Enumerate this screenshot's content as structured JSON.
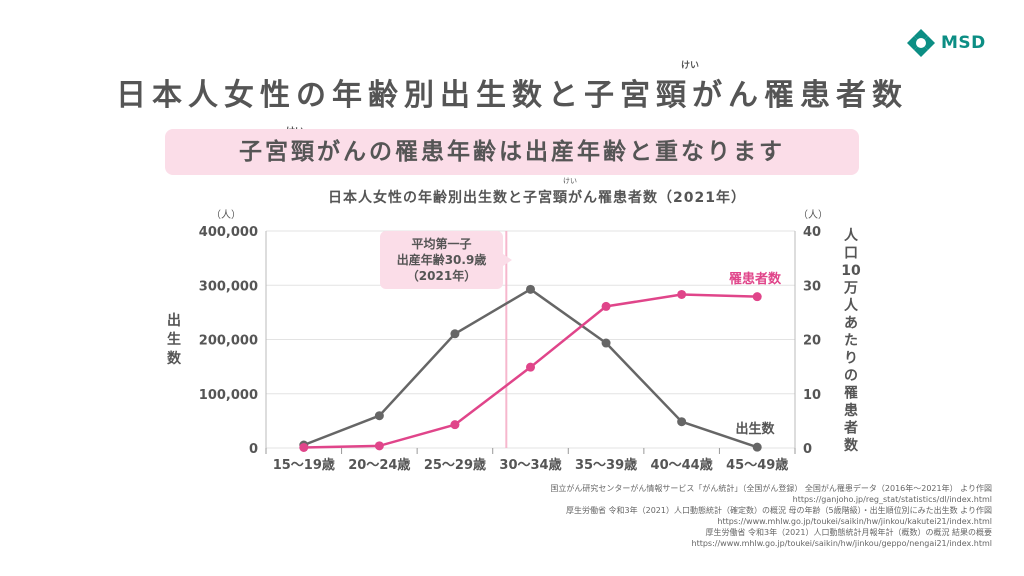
{
  "brand": {
    "name": "MSD",
    "mark": "msd-logo-mark",
    "color": "#0c8e84"
  },
  "page": {
    "title": "日本人女性の年齢別出生数と子宮頸がん罹患者数",
    "title_ruby": "けい",
    "banner": "子宮頸がんの罹患年齢は出産年齢と重なります",
    "banner_ruby": "けい",
    "banner_color": "#fbdde8"
  },
  "chart_data": {
    "type": "line",
    "title": "日本人女性の年齢別出生数と子宮頸がん罹患者数（2021年）",
    "title_ruby": "けい",
    "categories": [
      "15〜19歳",
      "20〜24歳",
      "25〜29歳",
      "30〜34歳",
      "35〜39歳",
      "40〜44歳",
      "45〜49歳"
    ],
    "y_left": {
      "label": "出生数",
      "unit": "（人）",
      "ticks": [
        "400,000",
        "300,000",
        "200,000",
        "100,000",
        "0"
      ],
      "ylim": [
        0,
        400000
      ]
    },
    "y_right": {
      "label": "人口10万人あたりの罹患者数",
      "unit": "（人）",
      "ticks": [
        "40",
        "30",
        "20",
        "10",
        "0"
      ],
      "ylim": [
        0,
        40
      ]
    },
    "series": [
      {
        "name": "出生数",
        "axis": "left",
        "color": "#666666",
        "values": [
          5500,
          59500,
          210500,
          292500,
          193500,
          48500,
          1500
        ]
      },
      {
        "name": "罹患者数",
        "axis": "right",
        "color": "#e0458a",
        "values": [
          0.1,
          0.4,
          4.3,
          14.9,
          26.1,
          28.3,
          27.9
        ]
      }
    ],
    "annotation": {
      "lines": [
        "平均第一子",
        "出産年齢30.9歳",
        "（2021年）"
      ],
      "x_value": 30.9,
      "color": "#f6b7cd",
      "box_color": "#fbdde8"
    },
    "grid": true,
    "legend": "inline labels"
  },
  "notes": [
    "国立がん研究センターがん情報サービス「がん統計」（全国がん登録） 全国がん罹患データ（2016年〜2021年） より作図",
    "https://ganjoho.jp/reg_stat/statistics/dl/index.html",
    "厚生労働省 令和3年（2021）人口動態統計（確定数）の概況 母の年齢（5歳階級）・出生順位別にみた出生数 より作図",
    "https://www.mhlw.go.jp/toukei/saikin/hw/jinkou/kakutei21/index.html",
    "厚生労働省 令和3年（2021）人口動態統計月報年計（概数）の概況 結果の概要",
    "https://www.mhlw.go.jp/toukei/saikin/hw/jinkou/geppo/nengai21/index.html"
  ]
}
